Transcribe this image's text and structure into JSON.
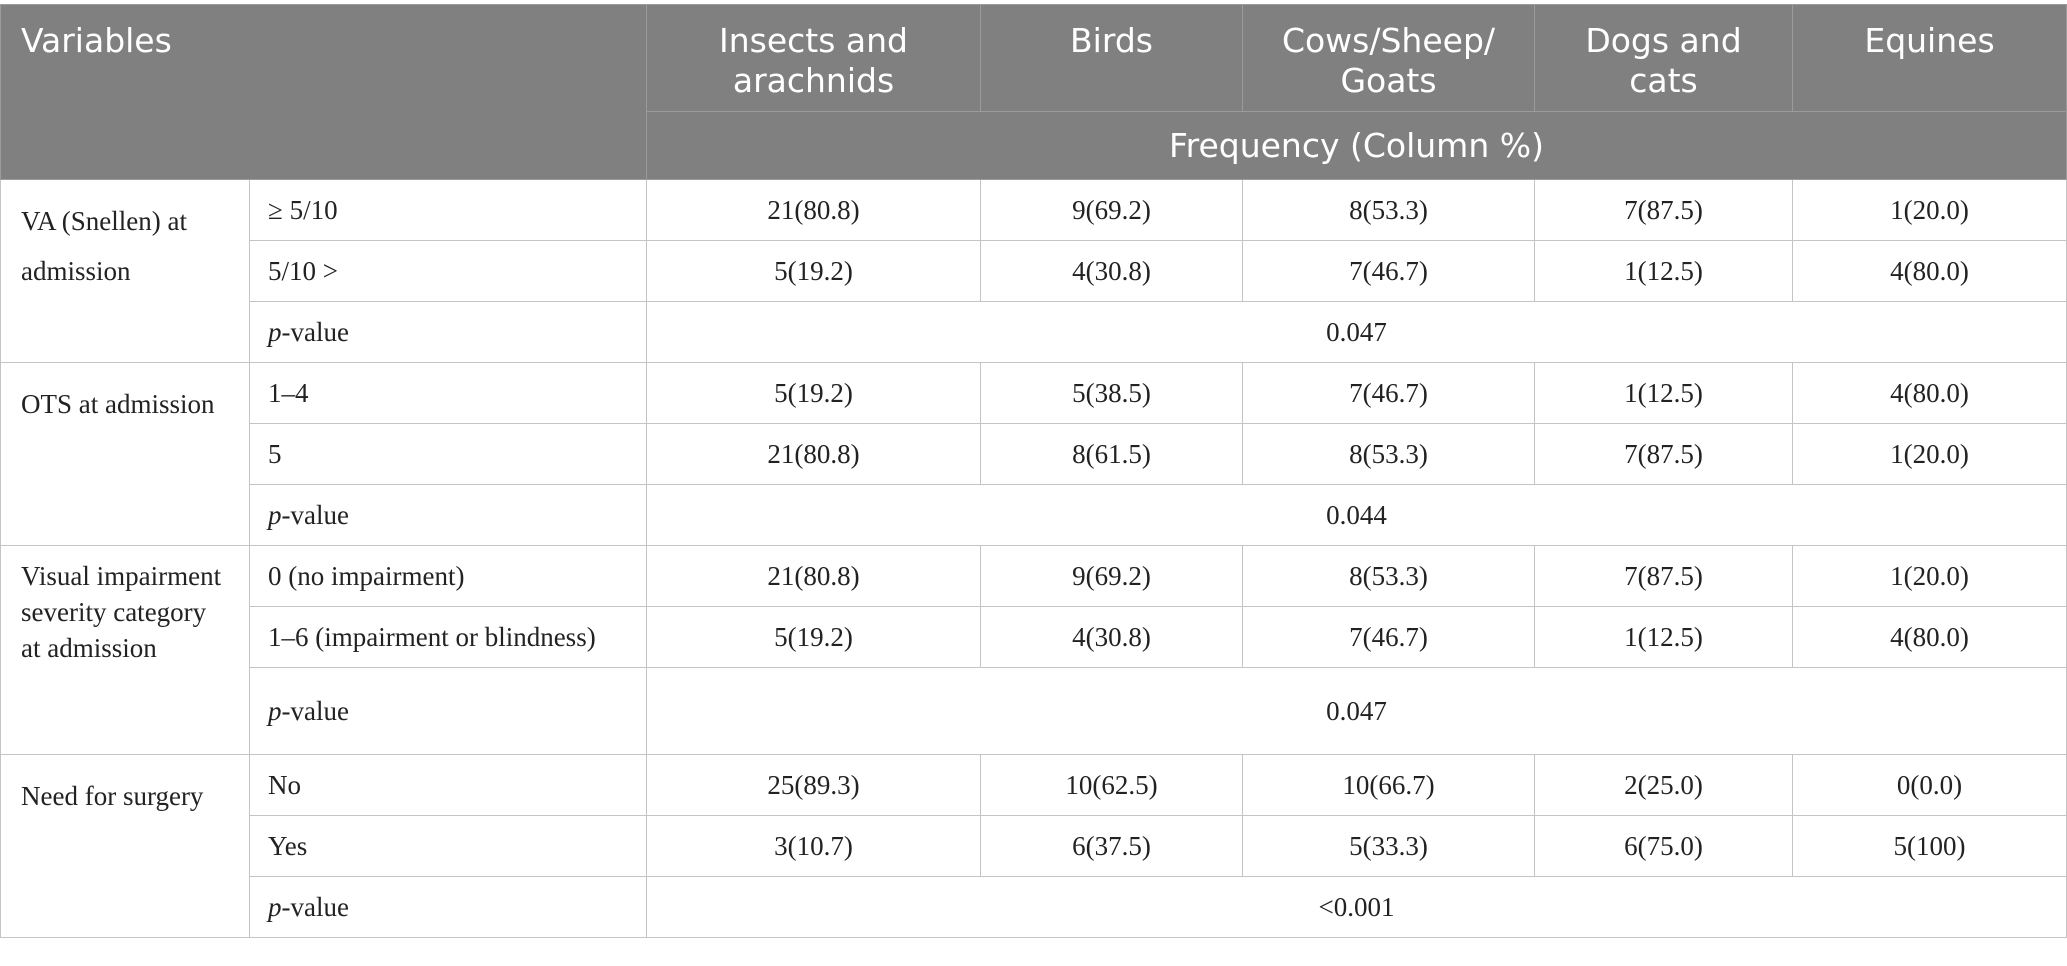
{
  "header": {
    "variables": "Variables",
    "columns": [
      "Insects and arachnids",
      "Birds",
      "Cows/Sheep/ Goats",
      "Dogs and cats",
      "Equines"
    ],
    "frequency_label": "Frequency (Column %)"
  },
  "groups": [
    {
      "label": "VA (Snellen) at admission",
      "rows": [
        {
          "sub": "≥ 5/10",
          "values": [
            "21(80.8)",
            "9(69.2)",
            "8(53.3)",
            "7(87.5)",
            "1(20.0)"
          ]
        },
        {
          "sub": "5/10 >",
          "values": [
            "5(19.2)",
            "4(30.8)",
            "7(46.7)",
            "1(12.5)",
            "4(80.0)"
          ]
        }
      ],
      "p_label": "p-value",
      "p_italic": "p",
      "p_rest": "-value",
      "p_value": "0.047"
    },
    {
      "label": "OTS at admission",
      "rows": [
        {
          "sub": "1–4",
          "values": [
            "5(19.2)",
            "5(38.5)",
            "7(46.7)",
            "1(12.5)",
            "4(80.0)"
          ]
        },
        {
          "sub": "5",
          "values": [
            "21(80.8)",
            "8(61.5)",
            "8(53.3)",
            "7(87.5)",
            "1(20.0)"
          ]
        }
      ],
      "p_italic": "p",
      "p_rest": "-value",
      "p_value": "0.044"
    },
    {
      "label": "Visual impairment severity category at admission",
      "rows": [
        {
          "sub": "0 (no impairment)",
          "values": [
            "21(80.8)",
            "9(69.2)",
            "8(53.3)",
            "7(87.5)",
            "1(20.0)"
          ]
        },
        {
          "sub": "1–6 (impairment or blindness)",
          "values": [
            "5(19.2)",
            "4(30.8)",
            "7(46.7)",
            "1(12.5)",
            "4(80.0)"
          ]
        }
      ],
      "p_italic": "p",
      "p_rest": "-value",
      "p_value": "0.047"
    },
    {
      "label": "Need for surgery",
      "rows": [
        {
          "sub": "No",
          "values": [
            "25(89.3)",
            "10(62.5)",
            "10(66.7)",
            "2(25.0)",
            "0(0.0)"
          ]
        },
        {
          "sub": "Yes",
          "values": [
            "3(10.7)",
            "6(37.5)",
            "5(33.3)",
            "6(75.0)",
            "5(100)"
          ]
        }
      ],
      "p_italic": "p",
      "p_rest": "-value",
      "p_value": "<0.001"
    }
  ]
}
